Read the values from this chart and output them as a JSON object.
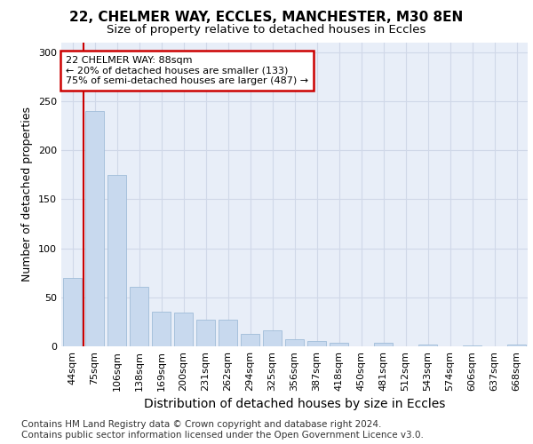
{
  "title1": "22, CHELMER WAY, ECCLES, MANCHESTER, M30 8EN",
  "title2": "Size of property relative to detached houses in Eccles",
  "xlabel": "Distribution of detached houses by size in Eccles",
  "ylabel": "Number of detached properties",
  "categories": [
    "44sqm",
    "75sqm",
    "106sqm",
    "138sqm",
    "169sqm",
    "200sqm",
    "231sqm",
    "262sqm",
    "294sqm",
    "325sqm",
    "356sqm",
    "387sqm",
    "418sqm",
    "450sqm",
    "481sqm",
    "512sqm",
    "543sqm",
    "574sqm",
    "606sqm",
    "637sqm",
    "668sqm"
  ],
  "values": [
    70,
    240,
    175,
    61,
    35,
    34,
    27,
    27,
    13,
    16,
    7,
    5,
    4,
    0,
    4,
    0,
    2,
    0,
    1,
    0,
    2
  ],
  "bar_color": "#c8d9ee",
  "bar_edge_color": "#a0bcd8",
  "annotation_box_text": "22 CHELMER WAY: 88sqm\n← 20% of detached houses are smaller (133)\n75% of semi-detached houses are larger (487) →",
  "annotation_box_color": "#ffffff",
  "annotation_box_edge_color": "#cc0000",
  "vline_color": "#cc0000",
  "vline_x": 1.5,
  "ylim": [
    0,
    310
  ],
  "yticks": [
    0,
    50,
    100,
    150,
    200,
    250,
    300
  ],
  "grid_color": "#d0d8e8",
  "background_color": "#ffffff",
  "plot_bg_color": "#e8eef8",
  "footer_text": "Contains HM Land Registry data © Crown copyright and database right 2024.\nContains public sector information licensed under the Open Government Licence v3.0.",
  "title1_fontsize": 11,
  "title2_fontsize": 9.5,
  "xlabel_fontsize": 10,
  "ylabel_fontsize": 9,
  "tick_fontsize": 8,
  "footer_fontsize": 7.5
}
